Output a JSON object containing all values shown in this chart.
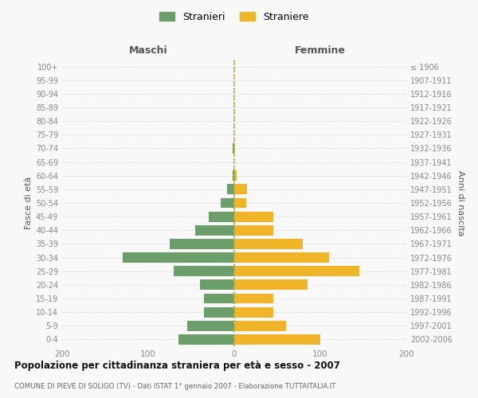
{
  "age_groups": [
    "0-4",
    "5-9",
    "10-14",
    "15-19",
    "20-24",
    "25-29",
    "30-34",
    "35-39",
    "40-44",
    "45-49",
    "50-54",
    "55-59",
    "60-64",
    "65-69",
    "70-74",
    "75-79",
    "80-84",
    "85-89",
    "90-94",
    "95-99",
    "100+"
  ],
  "birth_years": [
    "2002-2006",
    "1997-2001",
    "1992-1996",
    "1987-1991",
    "1982-1986",
    "1977-1981",
    "1972-1976",
    "1967-1971",
    "1962-1966",
    "1957-1961",
    "1952-1956",
    "1947-1951",
    "1942-1946",
    "1937-1941",
    "1932-1936",
    "1927-1931",
    "1922-1926",
    "1917-1921",
    "1912-1916",
    "1907-1911",
    "≤ 1906"
  ],
  "maschi": [
    65,
    55,
    35,
    35,
    40,
    70,
    130,
    75,
    45,
    30,
    16,
    8,
    2,
    0,
    2,
    0,
    0,
    0,
    0,
    0,
    0
  ],
  "femmine": [
    100,
    60,
    45,
    45,
    85,
    145,
    110,
    80,
    45,
    45,
    14,
    15,
    3,
    0,
    1,
    0,
    0,
    0,
    0,
    0,
    0
  ],
  "male_color": "#6b9e6b",
  "female_color": "#f0b429",
  "bg_color": "#f8f8f8",
  "grid_color": "#cccccc",
  "title": "Popolazione per cittadinanza straniera per età e sesso - 2007",
  "subtitle": "COMUNE DI PIEVE DI SOLIGO (TV) - Dati ISTAT 1° gennaio 2007 - Elaborazione TUTTAITALIA.IT",
  "xlabel_left": "Maschi",
  "xlabel_right": "Femmine",
  "ylabel_left": "Fasce di età",
  "ylabel_right": "Anni di nascita",
  "legend_male": "Stranieri",
  "legend_female": "Straniere",
  "xlim": 200,
  "xticks": [
    -200,
    -100,
    0,
    100,
    200
  ],
  "xticklabels": [
    "200",
    "100",
    "0",
    "100",
    "200"
  ]
}
